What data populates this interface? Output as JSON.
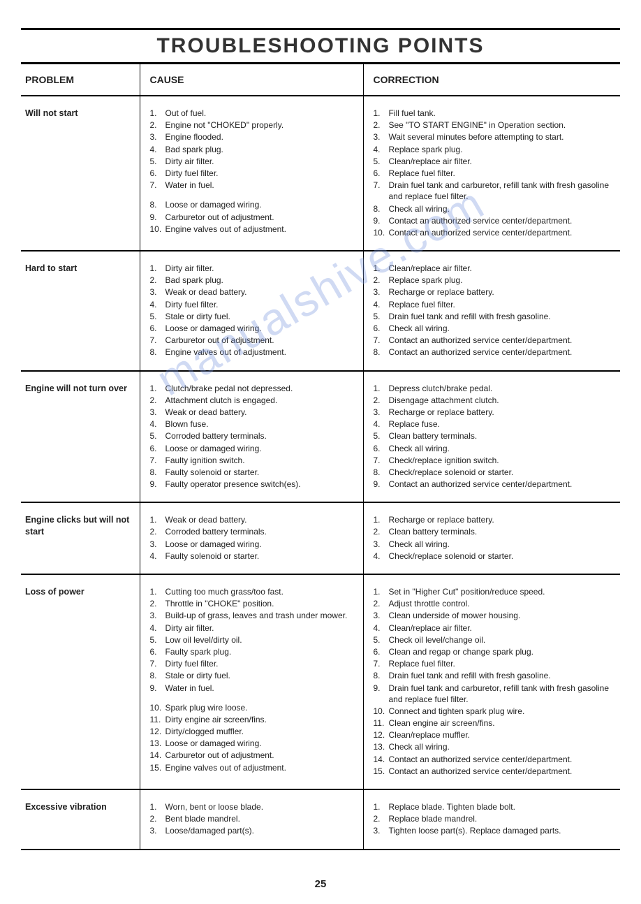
{
  "title": "TROUBLESHOOTING POINTS",
  "page_number": "25",
  "watermark_text": "manualshive.com",
  "headers": {
    "problem": "PROBLEM",
    "cause": "CAUSE",
    "correction": "CORRECTION"
  },
  "rows": [
    {
      "problem": "Will not start",
      "causes": [
        "Out of fuel.",
        "Engine not \"CHOKED\" properly.",
        "Engine flooded.",
        "Bad spark plug.",
        "Dirty air filter.",
        "Dirty fuel filter.",
        "Water in fuel.",
        "Loose or damaged wiring.",
        "Carburetor out of adjustment.",
        "Engine valves out of adjustment."
      ],
      "cause_gap_after": [
        6
      ],
      "corrections": [
        "Fill fuel tank.",
        "See \"TO START ENGINE\" in Operation section.",
        "Wait several minutes before attempting to start.",
        "Replace spark plug.",
        "Clean/replace air filter.",
        "Replace fuel filter.",
        "Drain fuel tank and carburetor, refill tank with fresh gasoline and replace fuel filter.",
        "Check all wiring.",
        "Contact an authorized service center/department.",
        "Contact an authorized service center/department."
      ]
    },
    {
      "problem": "Hard to start",
      "causes": [
        "Dirty air filter.",
        "Bad spark plug.",
        "Weak or dead battery.",
        "Dirty fuel filter.",
        "Stale or dirty fuel.",
        "Loose or damaged wiring.",
        "Carburetor out of adjustment.",
        "Engine valves out of adjustment."
      ],
      "corrections": [
        "Clean/replace air filter.",
        "Replace spark plug.",
        "Recharge or replace battery.",
        "Replace fuel filter.",
        "Drain fuel tank and refill with fresh gasoline.",
        "Check all wiring.",
        "Contact an authorized service center/department.",
        "Contact an authorized service center/department."
      ]
    },
    {
      "problem": "Engine will not turn over",
      "causes": [
        "Clutch/brake pedal not depressed.",
        "Attachment clutch is engaged.",
        "Weak or dead battery.",
        "Blown fuse.",
        "Corroded battery terminals.",
        "Loose or damaged wiring.",
        "Faulty ignition switch.",
        "Faulty solenoid or starter.",
        "Faulty operator presence switch(es)."
      ],
      "corrections": [
        "Depress clutch/brake pedal.",
        "Disengage attachment clutch.",
        "Recharge or replace battery.",
        "Replace fuse.",
        "Clean battery terminals.",
        "Check all wiring.",
        "Check/replace ignition switch.",
        "Check/replace solenoid or starter.",
        "Contact an authorized service center/department."
      ]
    },
    {
      "problem": "Engine clicks but will not start",
      "causes": [
        "Weak or dead battery.",
        "Corroded battery terminals.",
        "Loose or damaged wiring.",
        "Faulty solenoid or starter."
      ],
      "corrections": [
        "Recharge or replace battery.",
        "Clean battery terminals.",
        "Check all wiring.",
        "Check/replace solenoid or starter."
      ]
    },
    {
      "problem": "Loss of power",
      "causes": [
        "Cutting too much grass/too fast.",
        "Throttle in \"CHOKE\" position.",
        "Build-up of grass, leaves and trash under mower.",
        "Dirty air filter.",
        "Low oil level/dirty oil.",
        "Faulty spark plug.",
        "Dirty fuel filter.",
        "Stale or dirty fuel.",
        "Water in fuel.",
        "Spark plug wire loose.",
        "Dirty engine air screen/fins.",
        "Dirty/clogged muffler.",
        "Loose or damaged wiring.",
        "Carburetor out of adjustment.",
        "Engine valves out of adjustment."
      ],
      "cause_gap_after": [
        8
      ],
      "corrections": [
        "Set in \"Higher Cut\" position/reduce speed.",
        "Adjust throttle control.",
        "Clean underside of mower housing.",
        "Clean/replace air filter.",
        "Check oil level/change oil.",
        "Clean and regap or change spark plug.",
        "Replace fuel filter.",
        "Drain fuel tank and refill with fresh gasoline.",
        "Drain fuel tank and carburetor, refill tank with fresh gasoline and replace fuel filter.",
        "Connect and tighten spark plug wire.",
        "Clean engine air screen/fins.",
        "Clean/replace muffler.",
        "Check all wiring.",
        "Contact an authorized service center/department.",
        "Contact an authorized service center/department."
      ]
    },
    {
      "problem": "Excessive vibration",
      "causes": [
        "Worn, bent or loose blade.",
        "Bent blade mandrel.",
        "Loose/damaged part(s)."
      ],
      "corrections": [
        "Replace blade. Tighten blade bolt.",
        "Replace blade mandrel.",
        "Tighten loose part(s). Replace damaged parts."
      ]
    }
  ]
}
